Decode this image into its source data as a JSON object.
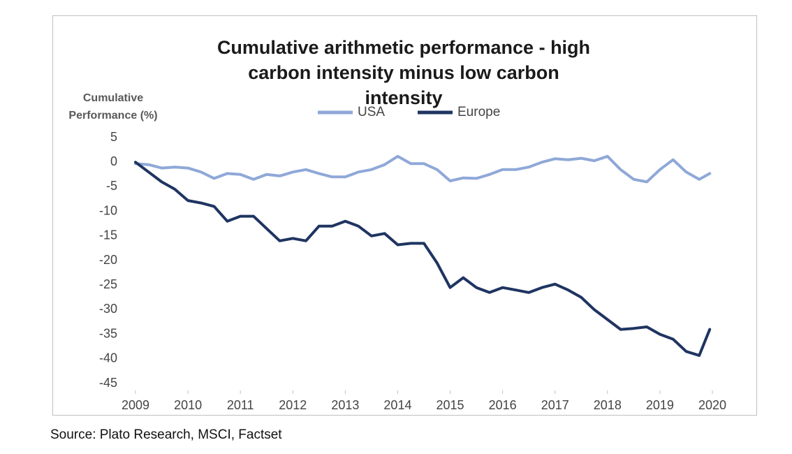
{
  "chart_data": {
    "type": "line",
    "title": "Cumulative arithmetic performance - high carbon intensity minus low carbon intensity",
    "y_label": "Cumulative Performance (%)",
    "source": "Source: Plato Research, MSCI, Factset",
    "legend": "top",
    "grid": false,
    "x": [
      2009,
      2009.25,
      2009.5,
      2009.75,
      2010,
      2010.25,
      2010.5,
      2010.75,
      2011,
      2011.25,
      2011.5,
      2011.75,
      2012,
      2012.25,
      2012.5,
      2012.75,
      2013,
      2013.25,
      2013.5,
      2013.75,
      2014,
      2014.25,
      2014.5,
      2014.75,
      2015,
      2015.25,
      2015.5,
      2015.75,
      2016,
      2016.25,
      2016.5,
      2016.75,
      2017,
      2017.25,
      2017.5,
      2017.75,
      2018,
      2018.25,
      2018.5,
      2018.75,
      2019,
      2019.25,
      2019.5,
      2019.75,
      2019.95
    ],
    "series": [
      {
        "name": "USA",
        "color": "#8fa8d8",
        "values": [
          -0.3,
          -0.5,
          -1.2,
          -1,
          -1.2,
          -2,
          -3.3,
          -2.3,
          -2.5,
          -3.5,
          -2.5,
          -2.8,
          -2,
          -1.5,
          -2.3,
          -3,
          -3,
          -2,
          -1.5,
          -0.5,
          1.2,
          -0.3,
          -0.3,
          -1.5,
          -3.8,
          -3.2,
          -3.3,
          -2.5,
          -1.5,
          -1.5,
          -1,
          0,
          0.7,
          0.5,
          0.8,
          0.3,
          1.2,
          -1.5,
          -3.5,
          -4,
          -1.5,
          0.5,
          -2,
          -3.5,
          -2.3
        ]
      },
      {
        "name": "Europe",
        "color": "#1f3461",
        "values": [
          0,
          -2,
          -4,
          -5.5,
          -7.8,
          -8.3,
          -9,
          -12,
          -11,
          -11,
          -13.5,
          -16,
          -15.5,
          -16,
          -13,
          -13,
          -12,
          -13,
          -15,
          -14.5,
          -16.8,
          -16.5,
          -16.5,
          -20.5,
          -25.5,
          -23.5,
          -25.5,
          -26.5,
          -25.5,
          -26,
          -26.5,
          -25.5,
          -24.8,
          -26,
          -27.5,
          -30,
          -32,
          -34,
          -33.8,
          -33.5,
          -35,
          -36,
          -38.5,
          -39.3,
          -34
        ]
      }
    ],
    "xlim": [
      2009,
      2020
    ],
    "xticks": [
      2009,
      2010,
      2011,
      2012,
      2013,
      2014,
      2015,
      2016,
      2017,
      2018,
      2019,
      2020
    ],
    "ylim": [
      -45,
      5
    ],
    "yticks": [
      5,
      0,
      -5,
      -10,
      -15,
      -20,
      -25,
      -30,
      -35,
      -40,
      -45
    ]
  }
}
